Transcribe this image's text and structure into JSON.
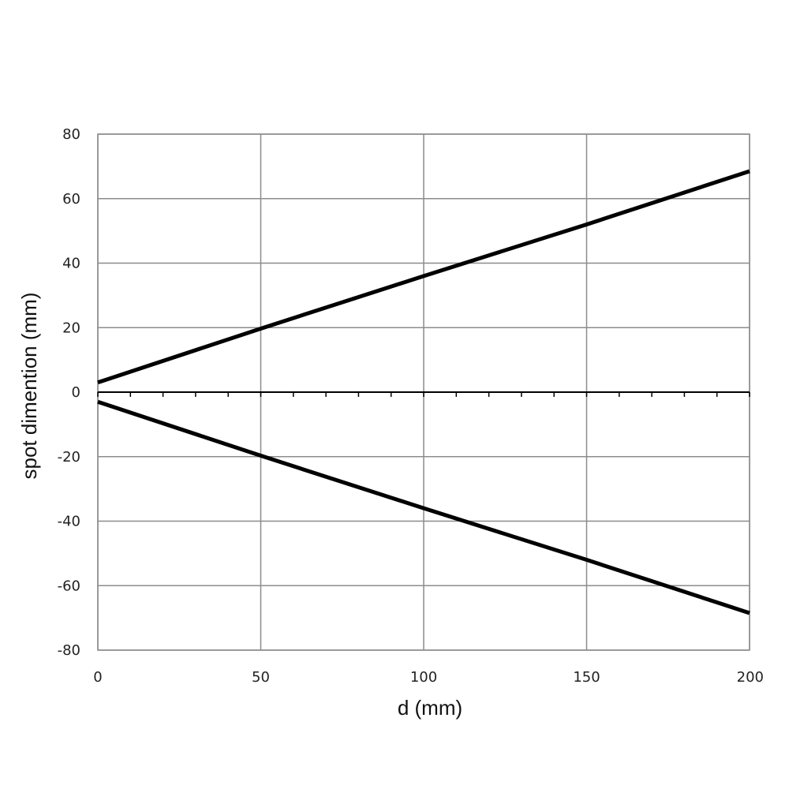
{
  "chart_data": {
    "type": "line",
    "xlabel": "d (mm)",
    "ylabel": "spot dimention (mm)",
    "xlim": [
      0,
      200
    ],
    "ylim": [
      -80,
      80
    ],
    "x_ticks": [
      0,
      50,
      100,
      150,
      200
    ],
    "x_tick_labels": [
      "0",
      "50",
      "100",
      "150",
      "200"
    ],
    "y_ticks": [
      80,
      60,
      40,
      20,
      0,
      -20,
      -40,
      -60,
      -80
    ],
    "y_tick_labels": [
      "80",
      "60",
      "40",
      "20",
      "0",
      "-20",
      "-40",
      "-60",
      "-80"
    ],
    "x_minor_tick_step": 10,
    "grid": true,
    "legend": "none",
    "series": [
      {
        "x": [
          0,
          50,
          100,
          150,
          200
        ],
        "y": [
          3,
          19.7,
          36,
          52,
          68.5
        ],
        "color": "#000000"
      },
      {
        "x": [
          0,
          50,
          100,
          150,
          200
        ],
        "y": [
          -3,
          -19.7,
          -36,
          -52,
          -68.5
        ],
        "color": "#000000"
      }
    ]
  }
}
